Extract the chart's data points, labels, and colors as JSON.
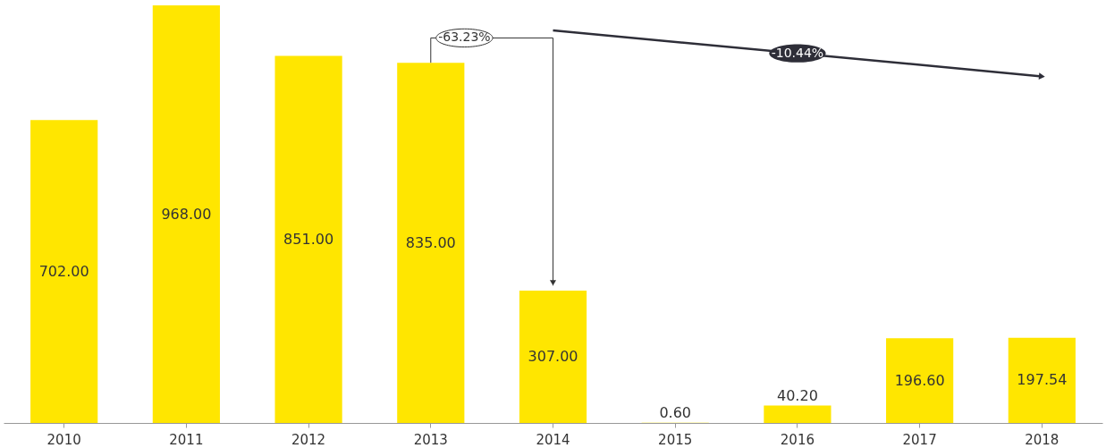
{
  "chart_data": {
    "type": "bar",
    "categories": [
      "2010",
      "2011",
      "2012",
      "2013",
      "2014",
      "2015",
      "2016",
      "2017",
      "2018"
    ],
    "values": [
      702,
      968,
      851,
      835,
      307,
      0.6,
      40.2,
      196.6,
      197.54
    ],
    "value_labels": [
      "702.00",
      "968.00",
      "851.00",
      "835.00",
      "307.00",
      "0.60",
      "40.20",
      "196.60",
      "197.54"
    ],
    "color": "#ffe600",
    "grid": false,
    "tick_labels": "x",
    "annotations": [
      "-63.23%",
      "-10.44%"
    ]
  }
}
